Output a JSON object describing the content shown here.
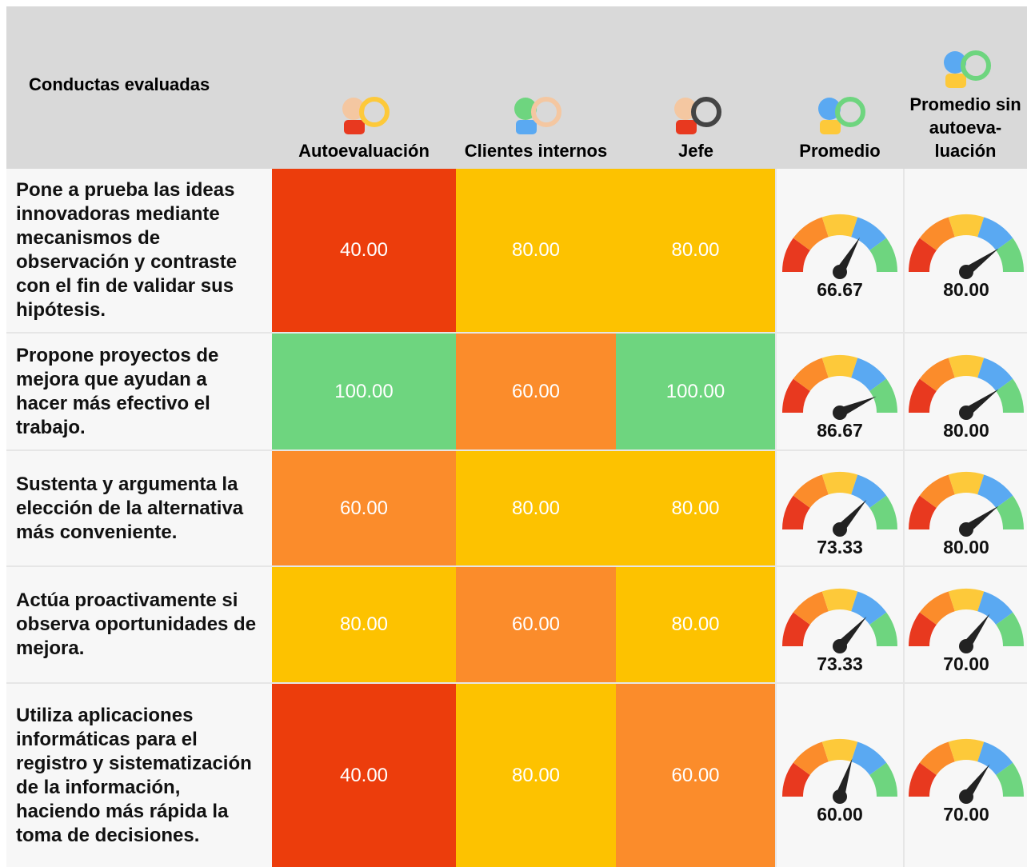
{
  "header": {
    "behavior": "Conductas evaluadas",
    "columns": [
      "Autoevaluación",
      "Clientes internos",
      "Jefe",
      "Promedio",
      "Promedio sin autoeva-luación"
    ]
  },
  "gauge": {
    "min": 0,
    "max": 100,
    "colors": [
      "#e8391f",
      "#fb8c2b",
      "#fdc93a",
      "#5aa9f2",
      "#6ed57f"
    ]
  },
  "rows": [
    {
      "behavior": "Pone a prueba las ideas innovadoras mediante mecanismos de observación y contraste con el fin de validar sus hipótesis.",
      "cells": [
        {
          "value": "40.00",
          "color": "#ec3d0c"
        },
        {
          "value": "80.00",
          "color": "#fdc200"
        },
        {
          "value": "80.00",
          "color": "#fdc200"
        }
      ],
      "average": "66.67",
      "average_without_self": "80.00"
    },
    {
      "behavior": "Propone proyectos de mejora que ayudan a hacer más efectivo el trabajo.",
      "cells": [
        {
          "value": "100.00",
          "color": "#6ed57f"
        },
        {
          "value": "60.00",
          "color": "#fb8c2b"
        },
        {
          "value": "100.00",
          "color": "#6ed57f"
        }
      ],
      "average": "86.67",
      "average_without_self": "80.00"
    },
    {
      "behavior": "Sustenta y argumenta la elección de la alternativa más conveniente.",
      "cells": [
        {
          "value": "60.00",
          "color": "#fb8c2b"
        },
        {
          "value": "80.00",
          "color": "#fdc200"
        },
        {
          "value": "80.00",
          "color": "#fdc200"
        }
      ],
      "average": "73.33",
      "average_without_self": "80.00"
    },
    {
      "behavior": "Actúa proactivamente si observa oportunidades de mejora.",
      "cells": [
        {
          "value": "80.00",
          "color": "#fdc200"
        },
        {
          "value": "60.00",
          "color": "#fb8c2b"
        },
        {
          "value": "80.00",
          "color": "#fdc200"
        }
      ],
      "average": "73.33",
      "average_without_self": "70.00"
    },
    {
      "behavior": "Utiliza aplicaciones informáticas para el registro y sistematización de la información, haciendo más rápida la toma de decisiones.",
      "cells": [
        {
          "value": "40.00",
          "color": "#ec3d0c"
        },
        {
          "value": "80.00",
          "color": "#fdc200"
        },
        {
          "value": "60.00",
          "color": "#fb8c2b"
        }
      ],
      "average": "60.00",
      "average_without_self": "70.00"
    }
  ]
}
